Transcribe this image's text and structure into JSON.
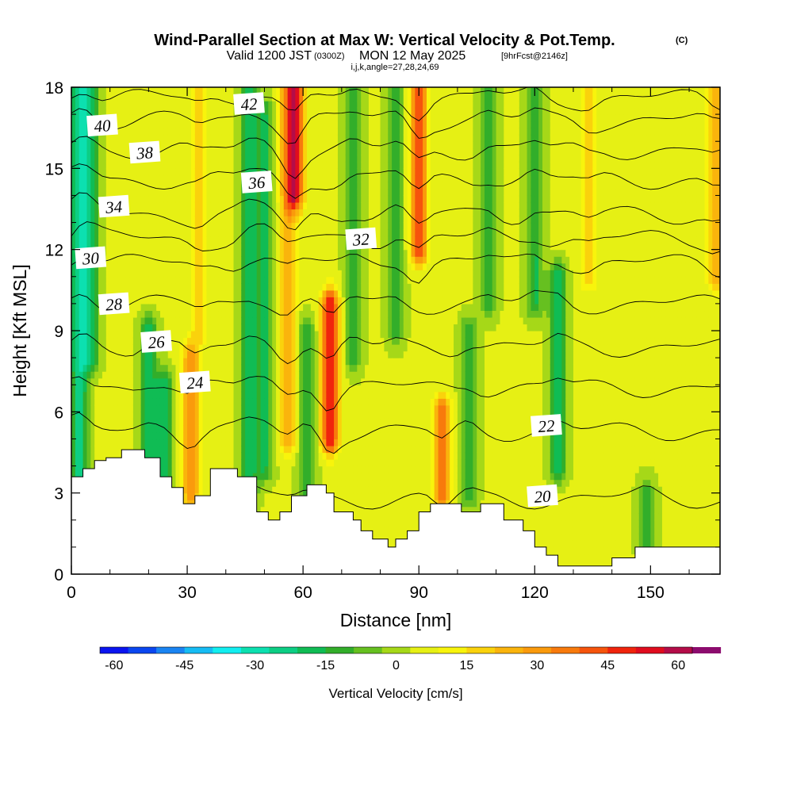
{
  "title": {
    "main": "Wind-Parallel Section at Max W: Vertical Velocity & Pot.Temp.",
    "main_suffix": "(C)",
    "valid_prefix": "Valid 1200 JST",
    "valid_utc": "(0300Z)",
    "valid_date": "MON 12 May 2025",
    "forecast": "[9hrFcst@2146z]",
    "indices": "i,j,k,angle=27,28,24,69"
  },
  "chart_data": {
    "type": "heatmap",
    "xlabel": "Distance [nm]",
    "ylabel": "Height [Kft MSL]",
    "xlim": [
      0,
      168
    ],
    "ylim": [
      0,
      18
    ],
    "x_ticks": [
      "0",
      "30",
      "60",
      "90",
      "120",
      "150"
    ],
    "y_ticks": [
      "0",
      "3",
      "6",
      "9",
      "12",
      "15",
      "18"
    ],
    "grid": false,
    "colorbar": {
      "title": "Vertical Velocity [cm/s]",
      "tick_labels": [
        "-60",
        "-45",
        "-30",
        "-15",
        "0",
        "15",
        "30",
        "45",
        "60"
      ],
      "min": -63,
      "max": 63,
      "step": 6,
      "colors": [
        "#0a14f0",
        "#0a46f0",
        "#1a84f2",
        "#16bcf4",
        "#12eef0",
        "#0ce0b0",
        "#0cce84",
        "#10bc54",
        "#32ae2a",
        "#66c020",
        "#a6d818",
        "#e6f014",
        "#f8f40c",
        "#fad20c",
        "#fab40c",
        "#fa9a0c",
        "#f87a0c",
        "#f6540c",
        "#f0240c",
        "#e00c1e",
        "#b40c48",
        "#8c0c6e",
        "#640c94"
      ]
    },
    "vertical_velocity_features": [
      {
        "x": 2,
        "z_bottom": 3.8,
        "z_top": 18,
        "w": -30
      },
      {
        "x": 5,
        "z_bottom": 8,
        "z_top": 18,
        "w": -22
      },
      {
        "x": 20,
        "z_bottom": 4.5,
        "z_top": 9,
        "w": -22
      },
      {
        "x": 24,
        "z_bottom": 3,
        "z_top": 7,
        "w": -24
      },
      {
        "x": 31,
        "z_bottom": 3,
        "z_top": 8,
        "w": 28
      },
      {
        "x": 33,
        "z_bottom": 9,
        "z_top": 18,
        "w": 15
      },
      {
        "x": 46,
        "z_bottom": 3,
        "z_top": 18,
        "w": -22
      },
      {
        "x": 50,
        "z_bottom": 4,
        "z_top": 17,
        "w": -20
      },
      {
        "x": 56,
        "z_bottom": 5,
        "z_top": 18,
        "w": 22
      },
      {
        "x": 58,
        "z_bottom": 14,
        "z_top": 18,
        "w": 44
      },
      {
        "x": 61,
        "z_bottom": 3,
        "z_top": 9,
        "w": -18
      },
      {
        "x": 67,
        "z_bottom": 5,
        "z_top": 10,
        "w": 48
      },
      {
        "x": 73,
        "z_bottom": 8,
        "z_top": 18,
        "w": -15
      },
      {
        "x": 84,
        "z_bottom": 9,
        "z_top": 18,
        "w": -15
      },
      {
        "x": 90,
        "z_bottom": 12,
        "z_top": 18,
        "w": 40
      },
      {
        "x": 96,
        "z_bottom": 3,
        "z_top": 6,
        "w": 36
      },
      {
        "x": 103,
        "z_bottom": 3,
        "z_top": 9,
        "w": -18
      },
      {
        "x": 108,
        "z_bottom": 10,
        "z_top": 18,
        "w": -15
      },
      {
        "x": 120,
        "z_bottom": 10,
        "z_top": 18,
        "w": -20
      },
      {
        "x": 126,
        "z_bottom": 4,
        "z_top": 11,
        "w": -22
      },
      {
        "x": 134,
        "z_bottom": 11,
        "z_top": 18,
        "w": 15
      },
      {
        "x": 149,
        "z_bottom": 1,
        "z_top": 3,
        "w": -15
      },
      {
        "x": 167,
        "z_bottom": 11,
        "z_top": 18,
        "w": 22
      }
    ],
    "terrain": {
      "x": [
        0,
        3,
        3,
        6,
        6,
        9,
        9,
        13,
        13,
        19,
        19,
        23,
        23,
        26,
        26,
        29,
        29,
        32,
        32,
        36,
        36,
        43,
        43,
        48,
        48,
        51,
        51,
        54,
        54,
        57,
        57,
        61,
        61,
        66,
        66,
        68,
        68,
        73,
        73,
        75,
        75,
        78,
        78,
        82,
        82,
        84,
        84,
        87,
        87,
        90,
        90,
        93,
        93,
        101,
        101,
        106,
        106,
        112,
        112,
        117,
        117,
        120,
        120,
        123,
        123,
        126,
        126,
        129,
        129,
        133,
        133,
        140,
        140,
        146,
        146,
        151,
        151,
        155,
        155,
        168
      ],
      "z": [
        3.6,
        3.6,
        3.9,
        3.9,
        4.2,
        4.2,
        4.3,
        4.3,
        4.6,
        4.6,
        4.3,
        4.3,
        3.6,
        3.6,
        3.2,
        3.2,
        2.6,
        2.6,
        2.9,
        2.9,
        3.9,
        3.9,
        3.6,
        3.6,
        2.3,
        2.3,
        2.0,
        2.0,
        2.3,
        2.3,
        2.9,
        2.9,
        3.3,
        3.3,
        3.0,
        3.0,
        2.3,
        2.3,
        2.0,
        2.0,
        1.6,
        1.6,
        1.3,
        1.3,
        1.0,
        1.0,
        1.3,
        1.3,
        1.6,
        1.6,
        2.3,
        2.3,
        2.6,
        2.6,
        2.3,
        2.3,
        2.6,
        2.6,
        2.0,
        2.0,
        1.6,
        1.6,
        1.0,
        1.0,
        0.7,
        0.7,
        0.3,
        0.3,
        0.3,
        0.3,
        0.3,
        0.3,
        0.6,
        0.6,
        1.0,
        1.0,
        1.0,
        1.0,
        1.0,
        1.0
      ]
    },
    "theta_contours": [
      {
        "value": 20,
        "z0": 2.8,
        "label": "20",
        "label_pos": [
          122,
          2.9
        ]
      },
      {
        "value": 22,
        "z0": 5.3,
        "label": "22",
        "label_pos": [
          123,
          5.5
        ]
      },
      {
        "value": 24,
        "z0": 6.9,
        "label": "24",
        "label_pos": [
          32,
          7.1
        ]
      },
      {
        "value": 26,
        "z0": 8.4,
        "label": "26",
        "label_pos": [
          22,
          8.6
        ]
      },
      {
        "value": 28,
        "z0": 10.0,
        "label": "28",
        "label_pos": [
          11,
          10.0
        ]
      },
      {
        "value": 30,
        "z0": 11.5,
        "label": "30",
        "label_pos": [
          5,
          11.7
        ]
      },
      {
        "value": 32,
        "z0": 12.4,
        "label": "32",
        "label_pos": [
          75,
          12.4
        ]
      },
      {
        "value": 34,
        "z0": 13.3,
        "label": "34",
        "label_pos": [
          11,
          13.6
        ]
      },
      {
        "value": 36,
        "z0": 14.6,
        "label": "36",
        "label_pos": [
          48,
          14.5
        ]
      },
      {
        "value": 38,
        "z0": 15.7,
        "label": "38",
        "label_pos": [
          19,
          15.6
        ]
      },
      {
        "value": 40,
        "z0": 16.8,
        "label": "40",
        "label_pos": [
          8,
          16.6
        ]
      },
      {
        "value": 42,
        "z0": 17.6,
        "label": "42",
        "label_pos": [
          46,
          17.4
        ]
      }
    ]
  }
}
